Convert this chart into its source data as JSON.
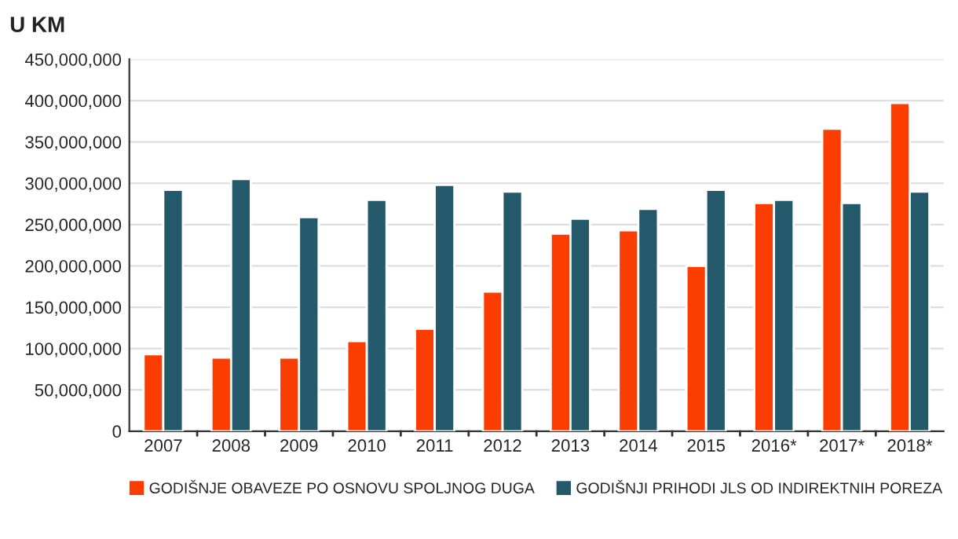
{
  "chart_data": {
    "type": "bar",
    "title": "U KM",
    "categories": [
      "2007",
      "2008",
      "2009",
      "2010",
      "2011",
      "2012",
      "2013",
      "2014",
      "2015",
      "2016*",
      "2017*",
      "2018*"
    ],
    "series": [
      {
        "name": "GODIŠNJE OBAVEZE PO OSNOVU SPOLJNOG DUGA",
        "color": "#fb3d02",
        "values": [
          93000000,
          89000000,
          89000000,
          109000000,
          124000000,
          169000000,
          239000000,
          243000000,
          200000000,
          276000000,
          366000000,
          397000000
        ]
      },
      {
        "name": "GODIŠNJI PRIHODI JLS OD INDIREKTNIH POREZA",
        "color": "#23596a",
        "values": [
          292000000,
          305000000,
          259000000,
          280000000,
          298000000,
          290000000,
          257000000,
          269000000,
          292000000,
          280000000,
          276000000,
          290000000
        ]
      }
    ],
    "ylim": [
      0,
      450000000
    ],
    "yticks": [
      {
        "value": 0,
        "label": "0"
      },
      {
        "value": 50000000,
        "label": "50,000,000"
      },
      {
        "value": 100000000,
        "label": "100,000,000"
      },
      {
        "value": 150000000,
        "label": "150,000,000"
      },
      {
        "value": 200000000,
        "label": "200,000,000"
      },
      {
        "value": 250000000,
        "label": "250,000,000"
      },
      {
        "value": 300000000,
        "label": "300,000,000"
      },
      {
        "value": 350000000,
        "label": "350,000,000"
      },
      {
        "value": 400000000,
        "label": "400,000,000"
      },
      {
        "value": 450000000,
        "label": "450,000,000"
      }
    ],
    "grid": "y",
    "legend": "bottom"
  }
}
